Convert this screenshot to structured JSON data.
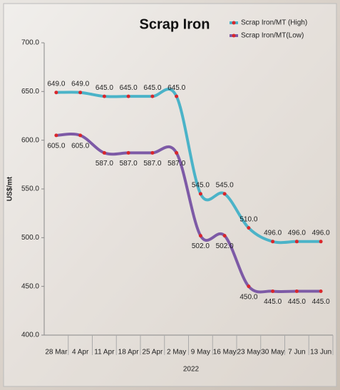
{
  "chart_data": {
    "type": "line",
    "title": "Scrap Iron",
    "x_label": "2022",
    "y_label": "US$/mt",
    "categories": [
      "28 Mar",
      "4 Apr",
      "11 Apr",
      "18 Apr",
      "25 Apr",
      "2 May",
      "9 May",
      "16 May",
      "23 May",
      "30 May",
      "7 Jun",
      "13 Jun"
    ],
    "series": [
      {
        "name": "Scrap Iron/MT (High)",
        "color": "#4bb3c8",
        "values": [
          649,
          649,
          645,
          645,
          645,
          645,
          545,
          545,
          510,
          496,
          496,
          496
        ],
        "value_labels": [
          "649.0",
          "649.0",
          "645.0",
          "645.0",
          "645.0",
          "645.0",
          "545.0",
          "545.0",
          "510.0",
          "496.0",
          "496.0",
          "496.0"
        ]
      },
      {
        "name": "Scrap Iron/MT(Low)",
        "color": "#7d5aa6",
        "values": [
          605,
          605,
          587,
          587,
          587,
          587,
          502,
          502,
          450,
          445,
          445,
          445
        ],
        "value_labels": [
          "605.0",
          "605.0",
          "587.0",
          "587.0",
          "587.0",
          "587.0",
          "502.0",
          "502.0",
          "450.0",
          "445.0",
          "445.0",
          "445.0"
        ]
      }
    ],
    "marker_color": "#d9262b",
    "ylim": [
      400,
      700
    ],
    "yticks": [
      {
        "value": 400,
        "label": "400.0"
      },
      {
        "value": 450,
        "label": "450.0"
      },
      {
        "value": 500,
        "label": "500.0"
      },
      {
        "value": 550,
        "label": "550.0"
      },
      {
        "value": 600,
        "label": "600.0"
      },
      {
        "value": 650,
        "label": "650.0"
      },
      {
        "value": 700,
        "label": "700.0"
      }
    ]
  }
}
